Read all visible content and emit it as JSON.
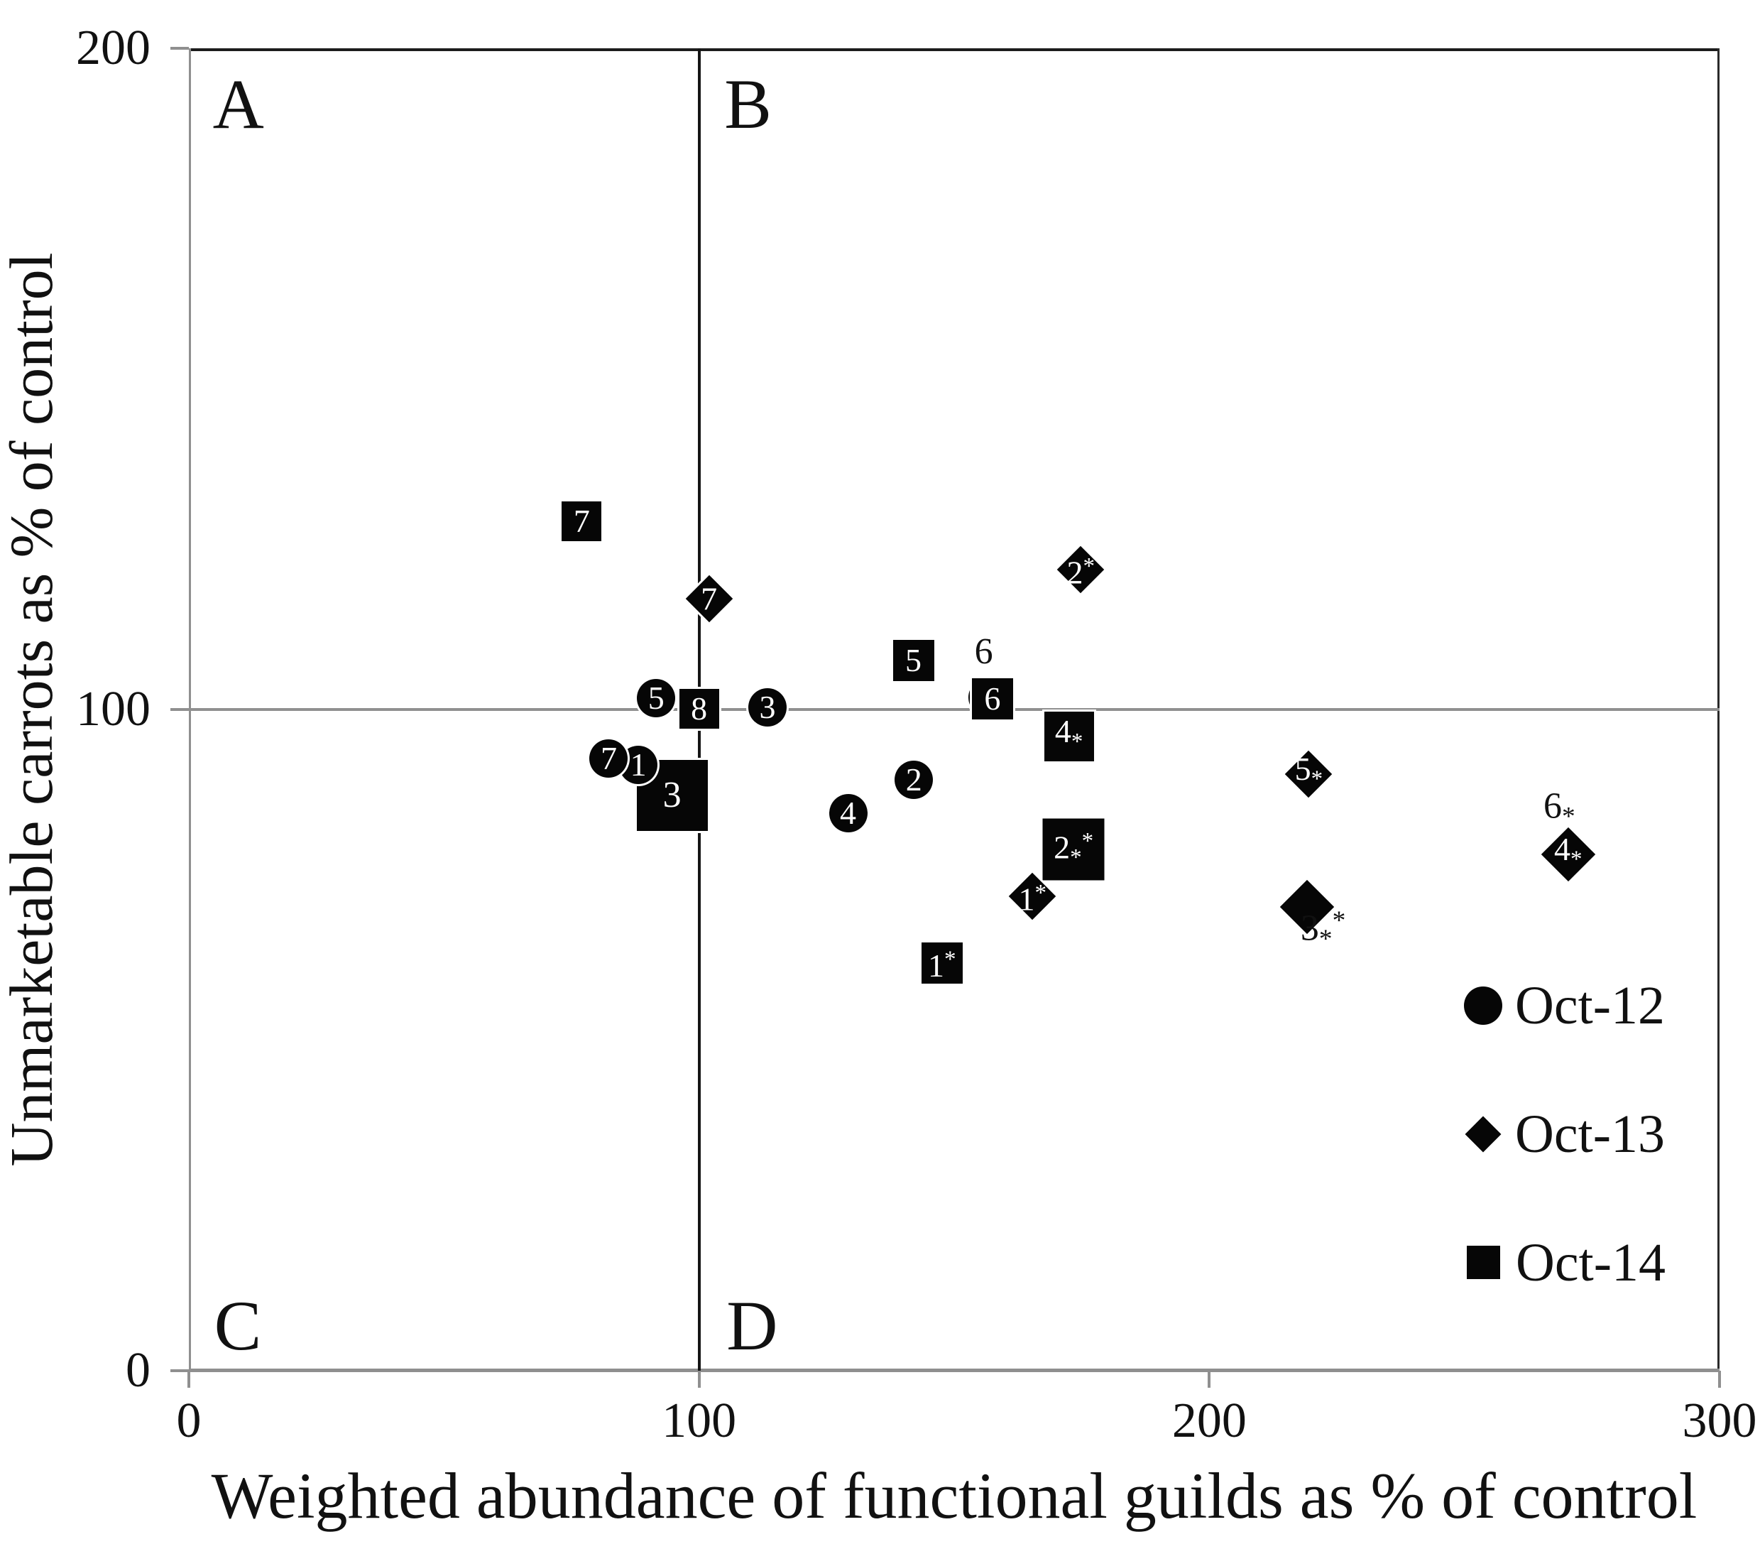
{
  "figure": {
    "background": "#ffffff"
  },
  "colors": {
    "marker": "#060606",
    "marker_label": "#ffffff",
    "frame_dark": "#1c1c1c",
    "frame_gray": "#8f8f8f",
    "reference_line_vertical": "#151515",
    "reference_line_horizontal": "#909090",
    "text": "#111111"
  },
  "chart_data": {
    "type": "scatter",
    "title": "",
    "xlabel": "Weighted abundance of functional guilds as % of control",
    "ylabel": "Unmarketable carrots as % of control",
    "xlim": [
      0,
      300
    ],
    "ylim": [
      0,
      200
    ],
    "x_ticks": [
      {
        "value": 0,
        "label": "0"
      },
      {
        "value": 100,
        "label": "100"
      },
      {
        "value": 200,
        "label": "200"
      },
      {
        "value": 300,
        "label": "300"
      }
    ],
    "y_ticks": [
      {
        "value": 0,
        "label": "0"
      },
      {
        "value": 100,
        "label": "100"
      },
      {
        "value": 200,
        "label": "200"
      }
    ],
    "grid": false,
    "reference_lines": {
      "x": 100,
      "y": 100
    },
    "quadrant_labels": [
      {
        "text": "A",
        "x": 9.7,
        "y": 191.5
      },
      {
        "text": "B",
        "x": 109.6,
        "y": 191.5
      },
      {
        "text": "C",
        "x": 9.6,
        "y": 6.8
      },
      {
        "text": "D",
        "x": 110.4,
        "y": 6.8
      }
    ],
    "series": [
      {
        "name": "Oct-12",
        "marker": "circle",
        "points": [
          {
            "label": "1",
            "x": 88.1,
            "y": 91.6,
            "z": 25
          },
          {
            "label": "2",
            "x": 142.1,
            "y": 89.4
          },
          {
            "label": "3",
            "x": 113.4,
            "y": 100.3
          },
          {
            "label": "4",
            "x": 129.2,
            "y": 84.3
          },
          {
            "label": "5",
            "x": 91.6,
            "y": 101.7
          },
          {
            "label": "6",
            "x": 156.5,
            "y": 101.8,
            "label_hidden": true
          },
          {
            "label": "7",
            "x": 82.3,
            "y": 92.6,
            "z": 25
          }
        ]
      },
      {
        "name": "Oct-13",
        "marker": "diamond",
        "points": [
          {
            "label": "7",
            "x": 102.0,
            "y": 116.8
          },
          {
            "label": "2",
            "star": "sup",
            "x": 174.8,
            "y": 121.2
          },
          {
            "label": "1",
            "star": "sup",
            "x": 165.3,
            "y": 71.8
          },
          {
            "label": "5",
            "star": "sub",
            "x": 219.5,
            "y": 90.2
          },
          {
            "label": "3",
            "x": 219.2,
            "y": 70.1,
            "size": 76,
            "label_hidden": true
          },
          {
            "label": "4",
            "star": "sub",
            "x": 270.3,
            "y": 78.1,
            "size": 76
          }
        ]
      },
      {
        "name": "Oct-14",
        "marker": "square",
        "points": [
          {
            "label": "7",
            "x": 77.0,
            "y": 128.5
          },
          {
            "label": "8",
            "x": 100.0,
            "y": 100.1
          },
          {
            "label": "3",
            "x": 94.7,
            "y": 87.0,
            "size": 100,
            "label_size": 52
          },
          {
            "label": "5",
            "x": 142.0,
            "y": 107.4,
            "size": 58
          },
          {
            "label": "6",
            "x": 157.5,
            "y": 101.6,
            "size": 58
          },
          {
            "label": "4",
            "star": "sub",
            "x": 172.5,
            "y": 95.9,
            "size": 70
          },
          {
            "label": "2",
            "star": "both",
            "x": 173.4,
            "y": 78.8,
            "size": 87
          },
          {
            "label": "1",
            "star": "sup",
            "x": 147.6,
            "y": 61.7,
            "size": 58
          }
        ]
      }
    ],
    "annotations": [
      {
        "text": "6",
        "x": 155.8,
        "y": 108.7
      },
      {
        "text": "6",
        "star": "sub",
        "x": 268.6,
        "y": 84.5
      },
      {
        "text": "3",
        "star": "both",
        "x": 222.3,
        "y": 66.6
      }
    ],
    "legend": {
      "position": "inside-right-bottom",
      "entries": [
        {
          "marker": "circle",
          "label": "Oct-12"
        },
        {
          "marker": "diamond",
          "label": "Oct-13"
        },
        {
          "marker": "square",
          "label": "Oct-14"
        }
      ]
    }
  }
}
